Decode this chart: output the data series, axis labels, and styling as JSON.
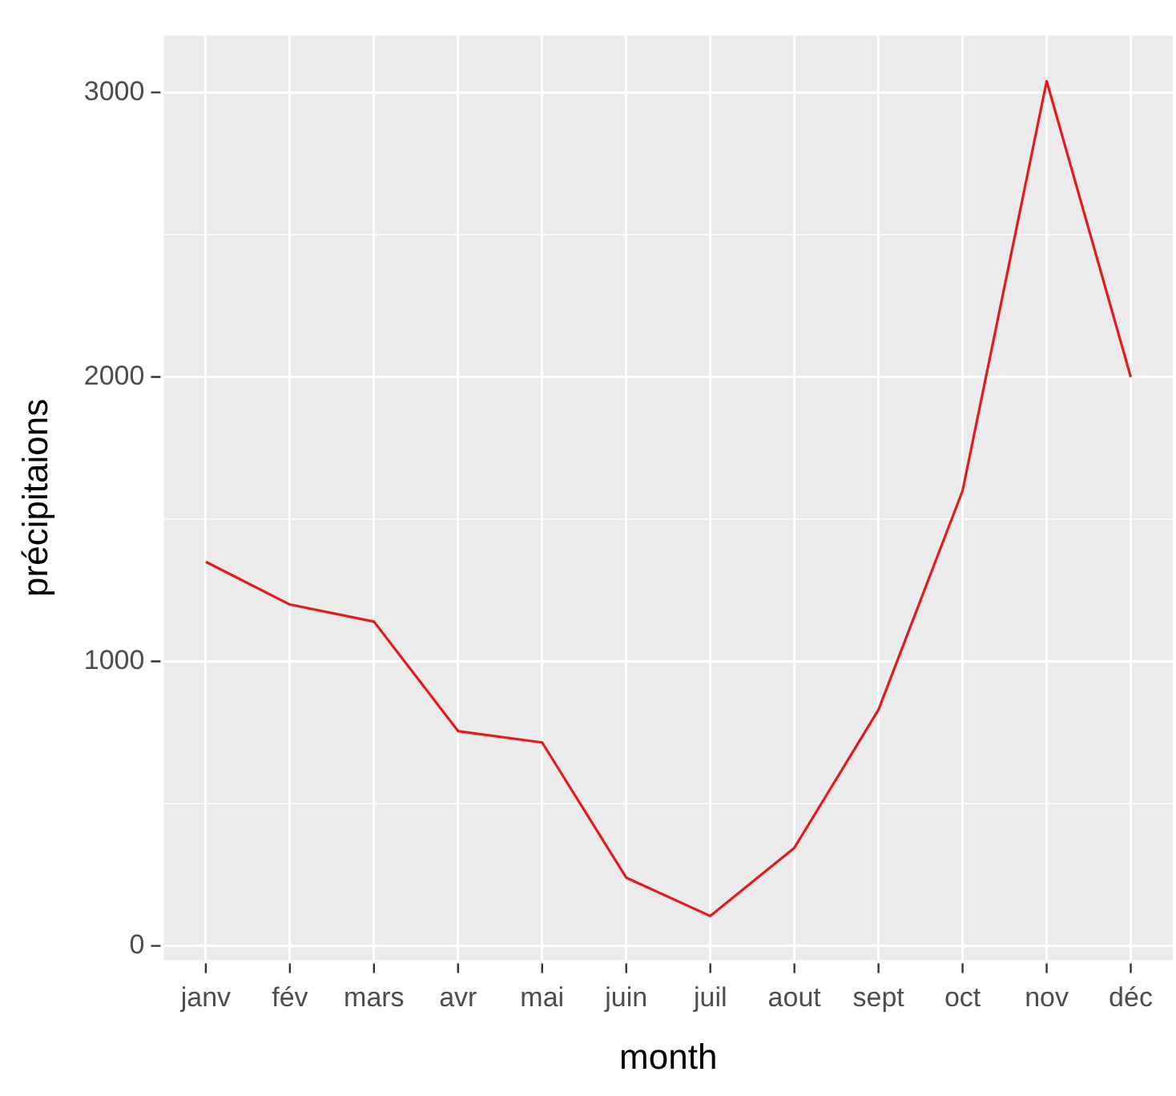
{
  "chart_data": {
    "type": "line",
    "xlabel": "month",
    "ylabel": "précipitaions",
    "categories": [
      "janv",
      "fév",
      "mars",
      "avr",
      "mai",
      "juin",
      "juil",
      "aout",
      "sept",
      "oct",
      "nov",
      "déc"
    ],
    "series": [
      {
        "color": "#e41a1c",
        "values": [
          1350,
          1200,
          1140,
          755,
          715,
          240,
          105,
          345,
          830,
          1600,
          3040,
          2000
        ]
      }
    ],
    "ylim": [
      -50,
      3200
    ],
    "yticks": [
      0,
      {
        "value": 500,
        "label": null
      },
      1000,
      {
        "value": 1500,
        "label": null
      },
      2000,
      {
        "value": 2500,
        "label": null
      },
      3000
    ],
    "grid": true,
    "legend": false,
    "marker": "none",
    "line_style": "solid"
  }
}
